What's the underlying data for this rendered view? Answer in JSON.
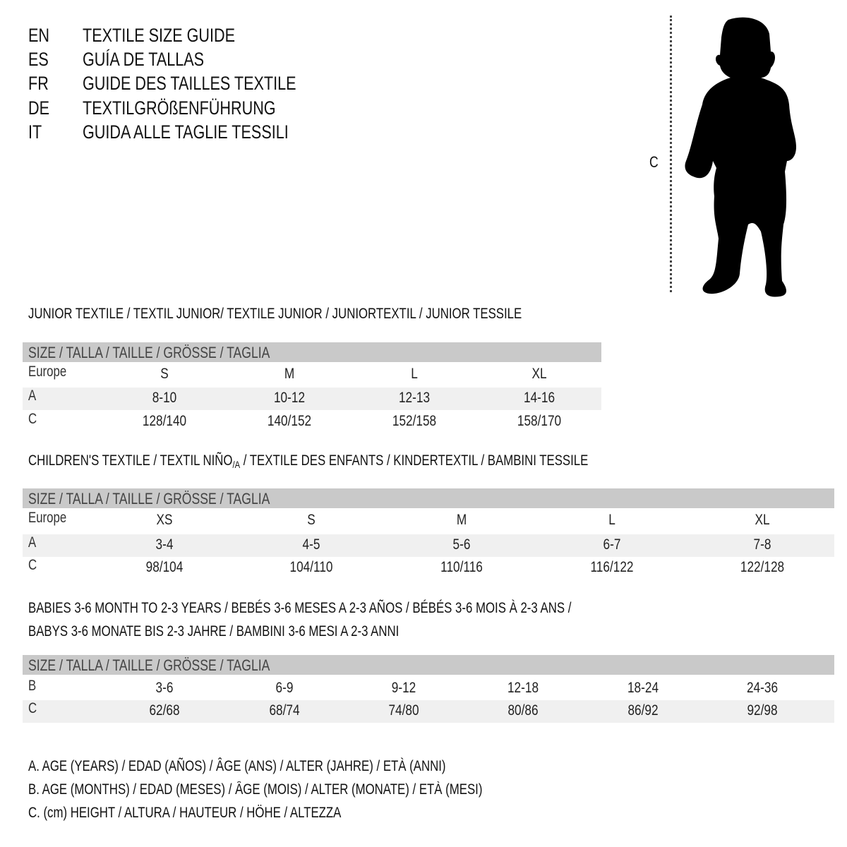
{
  "header": {
    "languages": [
      {
        "code": "EN",
        "title": "TEXTILE SIZE GUIDE"
      },
      {
        "code": "ES",
        "title": "GUÍA DE TALLAS"
      },
      {
        "code": "FR",
        "title": "GUIDE DES TAILLES TEXTILE"
      },
      {
        "code": "DE",
        "title": "TEXTILGRÖßENFÜHRUNG"
      },
      {
        "code": "IT",
        "title": "GUIDA ALLE TAGLIE TESSILI"
      }
    ]
  },
  "figure": {
    "measure_label": "C",
    "icon": "child-silhouette-icon"
  },
  "colors": {
    "header_bar": "#c9c9c9",
    "alt_row": "#f0f0f0"
  },
  "tables": [
    {
      "title": "JUNIOR TEXTILE / TEXTIL JUNIOR/ TEXTILE JUNIOR / JUNIORTEXTIL / JUNIOR TESSILE",
      "size_header": "SIZE / TALLA / TAILLE / GRÖSSE / TAGLIA",
      "rows": [
        {
          "label": "Europe",
          "values": [
            "S",
            "M",
            "L",
            "XL"
          ]
        },
        {
          "label": "A",
          "values": [
            "8-10",
            "10-12",
            "12-13",
            "14-16"
          ]
        },
        {
          "label": "C",
          "values": [
            "128/140",
            "140/152",
            "152/158",
            "158/170"
          ]
        }
      ]
    },
    {
      "title_main": "CHILDREN'S TEXTILE / TEXTIL NIÑO",
      "title_sub": "/A",
      "title_rest": " / TEXTILE DES ENFANTS / KINDERTEXTIL / BAMBINI TESSILE",
      "size_header": "SIZE / TALLA / TAILLE / GRÖSSE / TAGLIA",
      "rows": [
        {
          "label": "Europe",
          "values": [
            "XS",
            "S",
            "M",
            "L",
            "XL"
          ]
        },
        {
          "label": "A",
          "values": [
            "3-4",
            "4-5",
            "5-6",
            "6-7",
            "7-8"
          ]
        },
        {
          "label": "C",
          "values": [
            "98/104",
            "104/110",
            "110/116",
            "116/122",
            "122/128"
          ]
        }
      ]
    },
    {
      "title_line1": "BABIES 3-6 MONTH TO 2-3 YEARS / BEBÉS 3-6 MESES A 2-3 AÑOS / BÉBÉS 3-6 MOIS À 2-3 ANS /",
      "title_line2": "BABYS 3-6 MONATE BIS 2-3 JAHRE / BAMBINI 3-6 MESI A 2-3 ANNI",
      "size_header": "SIZE / TALLA / TAILLE / GRÖSSE / TAGLIA",
      "rows": [
        {
          "label": "B",
          "values": [
            "3-6",
            "6-9",
            "9-12",
            "12-18",
            "18-24",
            "24-36"
          ]
        },
        {
          "label": "C",
          "values": [
            "62/68",
            "68/74",
            "74/80",
            "80/86",
            "86/92",
            "92/98"
          ]
        }
      ]
    }
  ],
  "legend": [
    "A. AGE (YEARS) / EDAD (AÑOS) / ÂGE (ANS) / ALTER (JAHRE) / ETÀ (ANNI)",
    "B. AGE (MONTHS) / EDAD (MESES) / ÂGE (MOIS) / ALTER (MONATE) / ETÀ (MESI)",
    "C. (cm) HEIGHT / ALTURA / HAUTEUR / HÖHE / ALTEZZA"
  ]
}
